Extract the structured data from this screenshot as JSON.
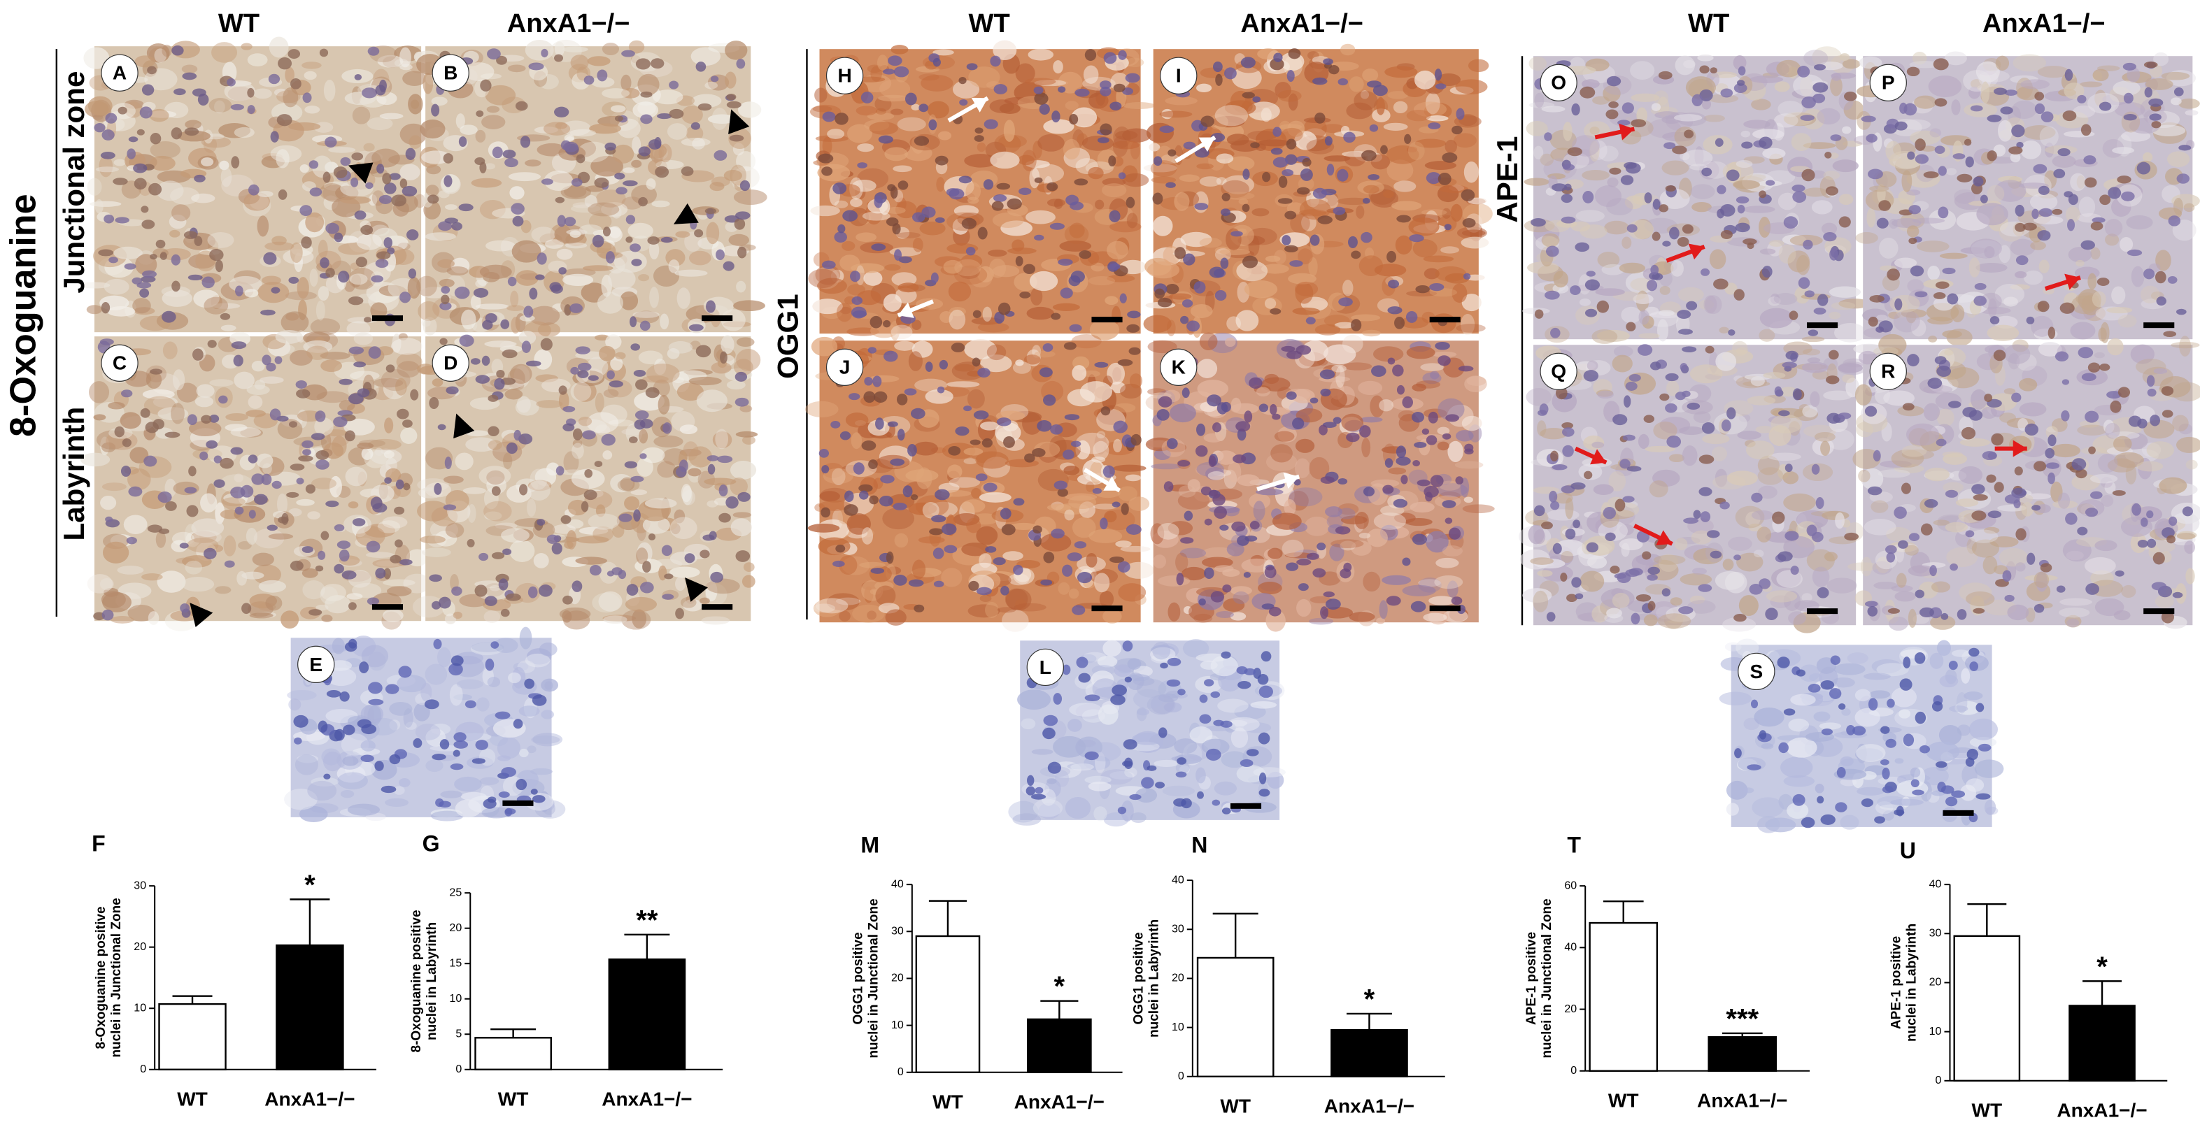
{
  "figure": {
    "sections": [
      {
        "title": "8-Oxoguanine",
        "columns": [
          "WT",
          "AnxA1−/−"
        ],
        "rows": [
          "Junctional zone",
          "Labyrinth"
        ],
        "panels": [
          "A",
          "B",
          "C",
          "D",
          "E"
        ]
      },
      {
        "title": "OGG1",
        "columns": [
          "WT",
          "AnxA1−/−"
        ],
        "panels": [
          "H",
          "I",
          "J",
          "K",
          "L"
        ]
      },
      {
        "title": "APE-1",
        "columns": [
          "WT",
          "AnxA1−/−"
        ],
        "panels": [
          "O",
          "P",
          "Q",
          "R",
          "S"
        ]
      }
    ]
  },
  "chart_data": [
    {
      "type": "bar",
      "panel": "F",
      "ylabel": [
        "8-Oxoguanine positive",
        "nuclei in Junctional Zone"
      ],
      "categories": [
        "WT",
        "AnxA1−/−"
      ],
      "values": [
        10.7,
        20.3
      ],
      "errors": [
        1.3,
        7.5
      ],
      "colors": [
        "#ffffff",
        "#000000"
      ],
      "annotation": "*",
      "ylim": [
        0,
        30
      ],
      "yticks": [
        0,
        10,
        20,
        30
      ]
    },
    {
      "type": "bar",
      "panel": "G",
      "ylabel": [
        "8-Oxoguanine positive",
        "nuclei in Labyrinth"
      ],
      "categories": [
        "WT",
        "AnxA1−/−"
      ],
      "values": [
        4.5,
        15.6
      ],
      "errors": [
        1.2,
        3.5
      ],
      "colors": [
        "#ffffff",
        "#000000"
      ],
      "annotation": "**",
      "ylim": [
        0,
        25
      ],
      "yticks": [
        0,
        5,
        10,
        15,
        20,
        25
      ]
    },
    {
      "type": "bar",
      "panel": "M",
      "ylabel": [
        "OGG1 positive",
        "nuclei in Junctional Zone"
      ],
      "categories": [
        "WT",
        "AnxA1−/−"
      ],
      "values": [
        29,
        11.3
      ],
      "errors": [
        7.5,
        3.9
      ],
      "colors": [
        "#ffffff",
        "#000000"
      ],
      "annotation": "*",
      "ylim": [
        0,
        40
      ],
      "yticks": [
        0,
        10,
        20,
        30,
        40
      ]
    },
    {
      "type": "bar",
      "panel": "N",
      "ylabel": [
        "OGG1 positive",
        "nuclei in Labyrinth"
      ],
      "categories": [
        "WT",
        "AnxA1−/−"
      ],
      "values": [
        24.2,
        9.5
      ],
      "errors": [
        9,
        3.3
      ],
      "colors": [
        "#ffffff",
        "#000000"
      ],
      "annotation": "*",
      "ylim": [
        0,
        40
      ],
      "yticks": [
        0,
        10,
        20,
        30,
        40
      ]
    },
    {
      "type": "bar",
      "panel": "T",
      "ylabel": [
        "APE-1 positive",
        "nuclei in Junctional Zone"
      ],
      "categories": [
        "WT",
        "AnxA1−/−"
      ],
      "values": [
        48,
        11
      ],
      "errors": [
        7,
        1.2
      ],
      "colors": [
        "#ffffff",
        "#000000"
      ],
      "annotation": "***",
      "ylim": [
        0,
        60
      ],
      "yticks": [
        0,
        20,
        40,
        60
      ]
    },
    {
      "type": "bar",
      "panel": "U",
      "ylabel": [
        "APE-1 positive",
        "nuclei in Labyrinth"
      ],
      "categories": [
        "WT",
        "AnxA1−/−"
      ],
      "values": [
        29.5,
        15.3
      ],
      "errors": [
        6.5,
        5
      ],
      "colors": [
        "#ffffff",
        "#000000"
      ],
      "annotation": "*",
      "ylim": [
        0,
        40
      ],
      "yticks": [
        0,
        10,
        20,
        30,
        40
      ]
    }
  ]
}
